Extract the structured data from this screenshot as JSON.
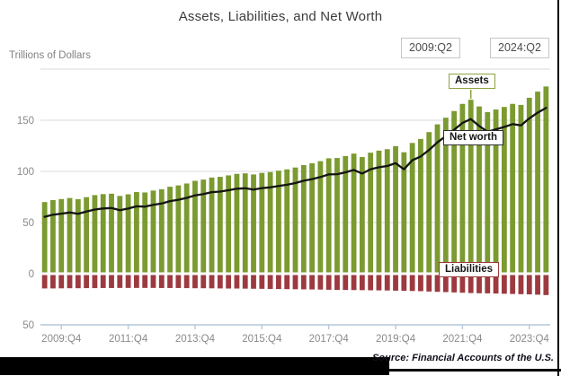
{
  "title": "Assets, Liabilities, and Net Worth",
  "y_axis_title": "Trillions of Dollars",
  "badges": {
    "start": "2009:Q2",
    "end": "2024:Q2"
  },
  "annotations": {
    "assets": "Assets",
    "net_worth": "Net worth",
    "liabilities": "Liabilities"
  },
  "footer": {
    "source": "Source: Financial Accounts of the U.S."
  },
  "colors": {
    "assets_bar": "#7B9A30",
    "liabilities_bar": "#9C3A40",
    "net_worth_line": "#141414",
    "grid": "#D8D8D8",
    "axis": "#B5C9DA",
    "tick_text": "#8A8A8A",
    "assets_border": "#8CA33F",
    "net_worth_border": "#2F2F2F",
    "liabilities_border": "#9B3A3A",
    "badge_border": "#C6C6C6"
  },
  "chart_data": {
    "type": "bar",
    "title": "Assets, Liabilities, and Net Worth",
    "ylabel": "Trillions of Dollars",
    "ylim": [
      -50,
      200
    ],
    "grid": true,
    "gridline_values": [
      200,
      150,
      100,
      50
    ],
    "y_ticks": [
      {
        "value": 150,
        "label": "150"
      },
      {
        "value": 100,
        "label": "100"
      },
      {
        "value": 50,
        "label": "50"
      },
      {
        "value": 0,
        "label": "0"
      },
      {
        "value": -50,
        "label": "50"
      }
    ],
    "x": [
      "2009:Q2",
      "2009:Q3",
      "2009:Q4",
      "2010:Q1",
      "2010:Q2",
      "2010:Q3",
      "2010:Q4",
      "2011:Q1",
      "2011:Q2",
      "2011:Q3",
      "2011:Q4",
      "2012:Q1",
      "2012:Q2",
      "2012:Q3",
      "2012:Q4",
      "2013:Q1",
      "2013:Q2",
      "2013:Q3",
      "2013:Q4",
      "2014:Q1",
      "2014:Q2",
      "2014:Q3",
      "2014:Q4",
      "2015:Q1",
      "2015:Q2",
      "2015:Q3",
      "2015:Q4",
      "2016:Q1",
      "2016:Q2",
      "2016:Q3",
      "2016:Q4",
      "2017:Q1",
      "2017:Q2",
      "2017:Q3",
      "2017:Q4",
      "2018:Q1",
      "2018:Q2",
      "2018:Q3",
      "2018:Q4",
      "2019:Q1",
      "2019:Q2",
      "2019:Q3",
      "2019:Q4",
      "2020:Q1",
      "2020:Q2",
      "2020:Q3",
      "2020:Q4",
      "2021:Q1",
      "2021:Q2",
      "2021:Q3",
      "2021:Q4",
      "2022:Q1",
      "2022:Q2",
      "2022:Q3",
      "2022:Q4",
      "2023:Q1",
      "2023:Q2",
      "2023:Q3",
      "2023:Q4",
      "2024:Q1",
      "2024:Q2"
    ],
    "x_tick_labels": [
      "2009:Q4",
      "2011:Q4",
      "2013:Q4",
      "2015:Q4",
      "2017:Q4",
      "2019:Q4",
      "2021:Q4",
      "2023:Q4"
    ],
    "x_tick_indices": [
      2,
      10,
      18,
      26,
      34,
      42,
      50,
      58
    ],
    "assets_peak_index": 51,
    "series": [
      {
        "name": "Assets",
        "type": "bar",
        "values": [
          70.0,
          72.0,
          73.0,
          74.0,
          72.8,
          74.8,
          76.8,
          77.8,
          78.2,
          76.0,
          77.6,
          79.8,
          79.4,
          81.3,
          82.6,
          85.0,
          86.3,
          88.2,
          90.8,
          92.0,
          94.0,
          94.7,
          96.1,
          97.6,
          98.1,
          97.0,
          98.5,
          99.3,
          100.7,
          102.0,
          103.8,
          106.2,
          107.9,
          110.0,
          112.8,
          113.1,
          115.0,
          117.4,
          114.0,
          118.3,
          120.3,
          121.7,
          124.7,
          118.7,
          127.8,
          131.7,
          138.4,
          146.0,
          152.5,
          159.0,
          166.0,
          170.0,
          163.5,
          158.0,
          160.5,
          163.0,
          166.0,
          165.0,
          172.0,
          178.0,
          183.0
        ]
      },
      {
        "name": "Liabilities",
        "type": "bar",
        "values": [
          -14.4,
          -14.4,
          -14.3,
          -14.2,
          -14.2,
          -14.1,
          -14.1,
          -14.0,
          -14.0,
          -13.9,
          -13.9,
          -13.9,
          -13.9,
          -13.9,
          -14.0,
          -14.0,
          -14.0,
          -14.1,
          -14.2,
          -14.2,
          -14.3,
          -14.4,
          -14.5,
          -14.5,
          -14.6,
          -14.7,
          -14.8,
          -14.9,
          -15.0,
          -15.1,
          -15.2,
          -15.3,
          -15.4,
          -15.5,
          -15.7,
          -15.8,
          -15.9,
          -16.0,
          -16.1,
          -16.2,
          -16.3,
          -16.4,
          -16.6,
          -16.7,
          -16.9,
          -17.1,
          -17.4,
          -17.7,
          -18.0,
          -18.3,
          -18.6,
          -18.9,
          -19.1,
          -19.2,
          -19.4,
          -19.6,
          -19.8,
          -20.0,
          -20.2,
          -20.5,
          -20.9
        ]
      },
      {
        "name": "Net worth",
        "type": "line",
        "values": [
          55.6,
          57.6,
          58.7,
          59.8,
          58.6,
          60.7,
          62.7,
          63.8,
          64.2,
          62.1,
          63.7,
          65.9,
          65.5,
          67.4,
          68.6,
          71.0,
          72.3,
          74.1,
          76.6,
          77.8,
          79.7,
          80.3,
          81.6,
          83.1,
          83.5,
          82.3,
          83.7,
          84.4,
          85.7,
          86.9,
          88.6,
          90.9,
          92.5,
          94.5,
          97.1,
          97.3,
          99.1,
          101.4,
          97.9,
          102.1,
          104.0,
          105.3,
          108.1,
          102.0,
          110.9,
          114.6,
          121.0,
          128.3,
          134.5,
          140.7,
          147.4,
          151.1,
          144.4,
          138.8,
          141.1,
          143.4,
          146.2,
          145.0,
          151.8,
          157.5,
          162.1
        ]
      }
    ]
  }
}
